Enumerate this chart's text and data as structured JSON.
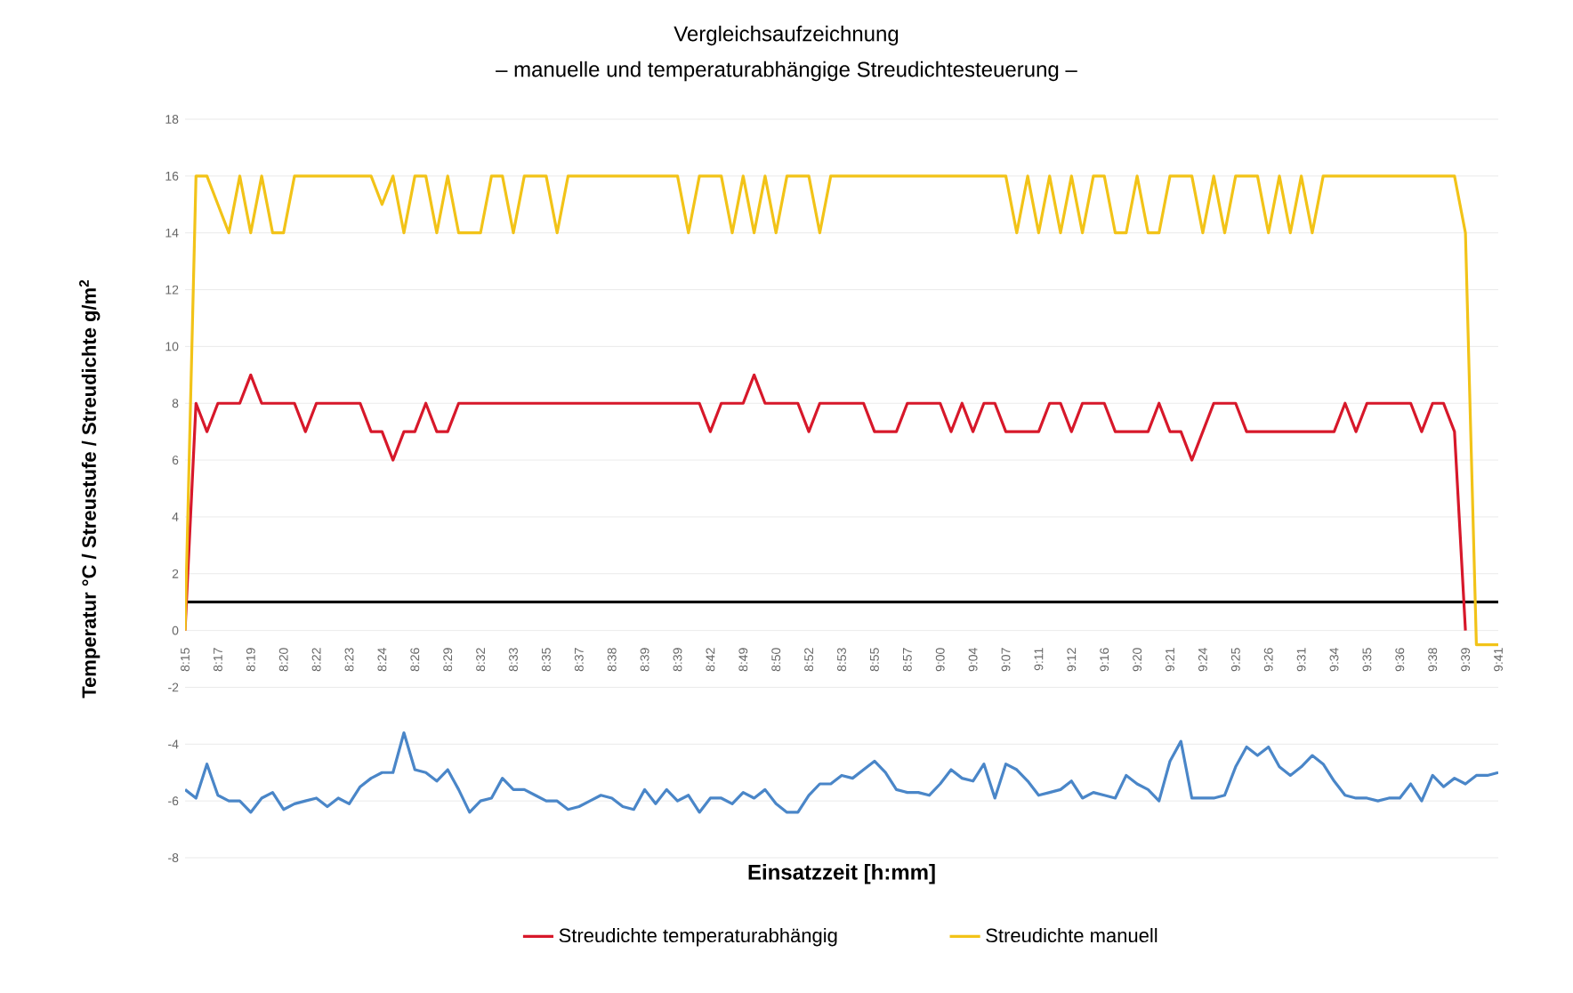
{
  "chart_data": {
    "type": "line",
    "title": "Vergleichsaufzeichnung",
    "subtitle": "– manuelle und temperaturabhängige Streudichtesteuerung –",
    "xlabel": "Einsatzzeit [h:mm]",
    "ylabel": "Temperatur °C / Streustufe / Streudichte g/m$^{2}$",
    "categories": [
      "8:15",
      null,
      null,
      "8:17",
      null,
      null,
      "8:19",
      null,
      null,
      "8:20",
      null,
      null,
      "8:22",
      null,
      null,
      "8:23",
      null,
      null,
      "8:24",
      null,
      null,
      "8:26",
      null,
      null,
      "8:29",
      null,
      null,
      "8:32",
      null,
      null,
      "8:33",
      null,
      null,
      "8:35",
      null,
      null,
      "8:37",
      null,
      null,
      "8:38",
      null,
      null,
      "8:39",
      null,
      null,
      "8:39",
      null,
      null,
      "8:42",
      null,
      null,
      "8:49",
      null,
      null,
      "8:50",
      null,
      null,
      "8:52",
      null,
      null,
      "8:53",
      null,
      null,
      "8:55",
      null,
      null,
      "8:57",
      null,
      null,
      "9:00",
      null,
      null,
      "9:04",
      null,
      null,
      "9:07",
      null,
      null,
      "9:11",
      null,
      null,
      "9:12",
      null,
      null,
      "9:16",
      null,
      null,
      "9:20",
      null,
      null,
      "9:21",
      null,
      null,
      "9:24",
      null,
      null,
      "9:25",
      null,
      null,
      "9:26",
      null,
      null,
      "9:31",
      null,
      null,
      "9:34",
      null,
      null,
      "9:35",
      null,
      null,
      "9:36",
      null,
      null,
      "9:38",
      null,
      null,
      "9:39",
      null,
      null,
      "9:41"
    ],
    "series": [
      {
        "color": "#4a86c8",
        "values": [
          -5.6,
          -5.9,
          -4.7,
          -5.8,
          -6.0,
          -6.0,
          -6.4,
          -5.9,
          -5.7,
          -6.3,
          -6.1,
          -6.0,
          -5.9,
          -6.2,
          -5.9,
          -6.1,
          -5.5,
          -5.2,
          -5.0,
          -5.0,
          -3.6,
          -4.9,
          -5.0,
          -5.3,
          -4.9,
          -5.6,
          -6.4,
          -6.0,
          -5.9,
          -5.2,
          -5.6,
          -5.6,
          -5.8,
          -6.0,
          -6.0,
          -6.3,
          -6.2,
          -6.0,
          -5.8,
          -5.9,
          -6.2,
          -6.3,
          -5.6,
          -6.1,
          -5.6,
          -6.0,
          -5.8,
          -6.4,
          -5.9,
          -5.9,
          -6.1,
          -5.7,
          -5.9,
          -5.6,
          -6.1,
          -6.4,
          -6.4,
          -5.8,
          -5.4,
          -5.4,
          -5.1,
          -5.2,
          -4.9,
          -4.6,
          -5.0,
          -5.6,
          -5.7,
          -5.7,
          -5.8,
          -5.4,
          -4.9,
          -5.2,
          -5.3,
          -4.7,
          -5.9,
          -4.7,
          -4.9,
          -5.3,
          -5.8,
          -5.7,
          -5.6,
          -5.3,
          -5.9,
          -5.7,
          -5.8,
          -5.9,
          -5.1,
          -5.4,
          -5.6,
          -6.0,
          -4.6,
          -3.9,
          -5.9,
          -5.9,
          -5.9,
          -5.8,
          -4.8,
          -4.1,
          -4.4,
          -4.1,
          -4.8,
          -5.1,
          -4.8,
          -4.4,
          -4.7,
          -5.3,
          -5.8,
          -5.9,
          -5.9,
          -6.0,
          -5.9,
          -5.9,
          -5.4,
          -6.0,
          -5.1,
          -5.5,
          -5.2,
          -5.4,
          -5.1,
          -5.1,
          -5.0
        ]
      },
      {
        "color": "#000000",
        "values": [
          1,
          1,
          1,
          1,
          1,
          1,
          1,
          1,
          1,
          1,
          1,
          1,
          1,
          1,
          1,
          1,
          1,
          1,
          1,
          1,
          1,
          1,
          1,
          1,
          1,
          1,
          1,
          1,
          1,
          1,
          1,
          1,
          1,
          1,
          1,
          1,
          1,
          1,
          1,
          1,
          1,
          1,
          1,
          1,
          1,
          1,
          1,
          1,
          1,
          1,
          1,
          1,
          1,
          1,
          1,
          1,
          1,
          1,
          1,
          1,
          1,
          1,
          1,
          1,
          1,
          1,
          1,
          1,
          1,
          1,
          1,
          1,
          1,
          1,
          1,
          1,
          1,
          1,
          1,
          1,
          1,
          1,
          1,
          1,
          1,
          1,
          1,
          1,
          1,
          1,
          1,
          1,
          1,
          1,
          1,
          1,
          1,
          1,
          1,
          1,
          1,
          1,
          1,
          1,
          1,
          1,
          1,
          1,
          1,
          1,
          1,
          1,
          1,
          1,
          1,
          1,
          1,
          1,
          1,
          1,
          1
        ]
      },
      {
        "name": "Streudichte temperaturabhängig",
        "color": "#d7182a",
        "values": [
          0,
          8,
          7,
          8,
          8,
          8,
          9,
          8,
          8,
          8,
          8,
          7,
          8,
          8,
          8,
          8,
          8,
          7,
          7,
          6,
          7,
          7,
          8,
          7,
          7,
          8,
          8,
          8,
          8,
          8,
          8,
          8,
          8,
          8,
          8,
          8,
          8,
          8,
          8,
          8,
          8,
          8,
          8,
          8,
          8,
          8,
          8,
          8,
          7,
          8,
          8,
          8,
          9,
          8,
          8,
          8,
          8,
          7,
          8,
          8,
          8,
          8,
          8,
          7,
          7,
          7,
          8,
          8,
          8,
          8,
          7,
          8,
          7,
          8,
          8,
          7,
          7,
          7,
          7,
          8,
          8,
          7,
          8,
          8,
          8,
          7,
          7,
          7,
          7,
          8,
          7,
          7,
          6,
          7,
          8,
          8,
          8,
          7,
          7,
          7,
          7,
          7,
          7,
          7,
          7,
          7,
          8,
          7,
          8,
          8,
          8,
          8,
          8,
          7,
          8,
          8,
          7,
          0,
          null,
          null,
          null
        ]
      },
      {
        "name": "Streudichte manuell",
        "color": "#f2c318",
        "values": [
          0,
          16,
          16,
          15,
          14,
          16,
          14,
          16,
          14,
          14,
          16,
          16,
          16,
          16,
          16,
          16,
          16,
          16,
          15,
          16,
          14,
          16,
          16,
          14,
          16,
          14,
          14,
          14,
          16,
          16,
          14,
          16,
          16,
          16,
          14,
          16,
          16,
          16,
          16,
          16,
          16,
          16,
          16,
          16,
          16,
          16,
          14,
          16,
          16,
          16,
          14,
          16,
          14,
          16,
          14,
          16,
          16,
          16,
          14,
          16,
          16,
          16,
          16,
          16,
          16,
          16,
          16,
          16,
          16,
          16,
          16,
          16,
          16,
          16,
          16,
          16,
          14,
          16,
          14,
          16,
          14,
          16,
          14,
          16,
          16,
          14,
          14,
          16,
          14,
          14,
          16,
          16,
          16,
          14,
          16,
          14,
          16,
          16,
          16,
          14,
          16,
          14,
          16,
          14,
          16,
          16,
          16,
          16,
          16,
          16,
          16,
          16,
          16,
          16,
          16,
          16,
          16,
          14,
          -0.5,
          -0.5,
          -0.5
        ]
      }
    ],
    "ylim": [
      -8,
      18
    ],
    "yticks": [
      -8,
      -6,
      -4,
      -2,
      0,
      2,
      4,
      6,
      8,
      10,
      12,
      14,
      16,
      18
    ],
    "grid": "y",
    "legend": "bottom"
  }
}
